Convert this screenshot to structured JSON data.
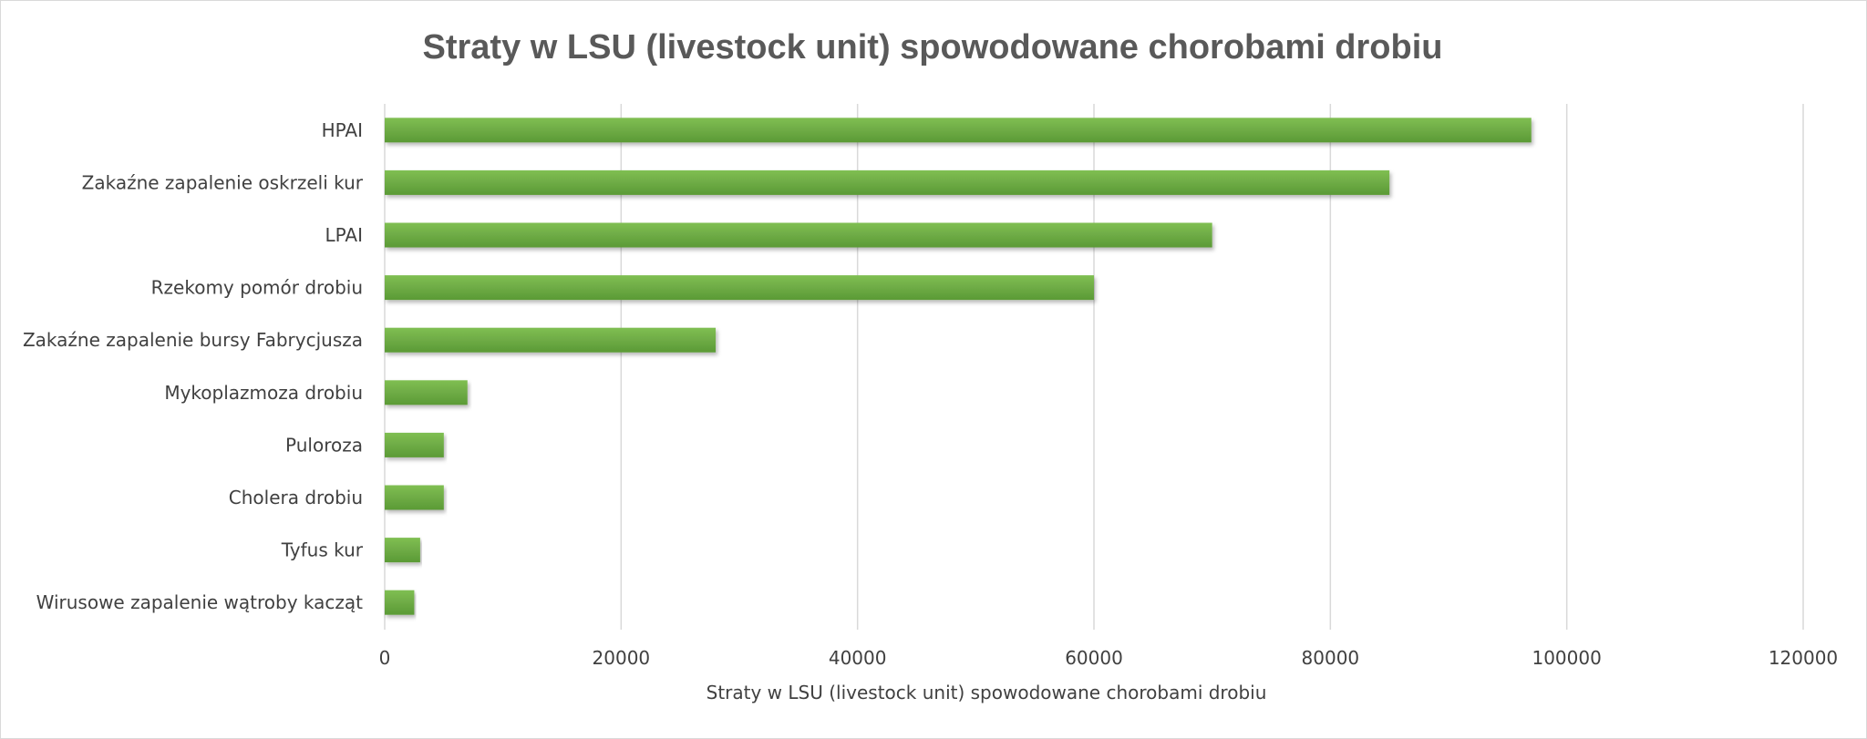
{
  "chart_data": {
    "type": "bar",
    "orientation": "horizontal",
    "title": "Straty w LSU (livestock unit) spowodowane chorobami drobiu",
    "xlabel": "Straty w LSU (livestock unit) spowodowane chorobami drobiu",
    "ylabel": "",
    "categories": [
      "HPAI",
      "Zakaźne zapalenie oskrzeli kur",
      "LPAI",
      "Rzekomy pomór drobiu",
      "Zakaźne zapalenie bursy Fabrycjusza",
      "Mykoplazmoza drobiu",
      "Puloroza",
      "Cholera drobiu",
      "Tyfus kur",
      "Wirusowe zapalenie wątroby kacząt"
    ],
    "values": [
      97000,
      85000,
      70000,
      60000,
      28000,
      7000,
      5000,
      5000,
      3000,
      2500
    ],
    "xlim": [
      0,
      120000
    ],
    "xticks": [
      0,
      20000,
      40000,
      60000,
      80000,
      100000,
      120000
    ],
    "xtick_labels": [
      "0",
      "20000",
      "40000",
      "60000",
      "80000",
      "100000",
      "120000"
    ],
    "grid": true,
    "legend": "none",
    "bar_color": "#70ad47",
    "bar_color_dark": "#5a9a35",
    "bar_color_light": "#7fbf52",
    "gridline_color": "#d9d9d9",
    "text_color": "#404040",
    "title_color": "#595959"
  }
}
